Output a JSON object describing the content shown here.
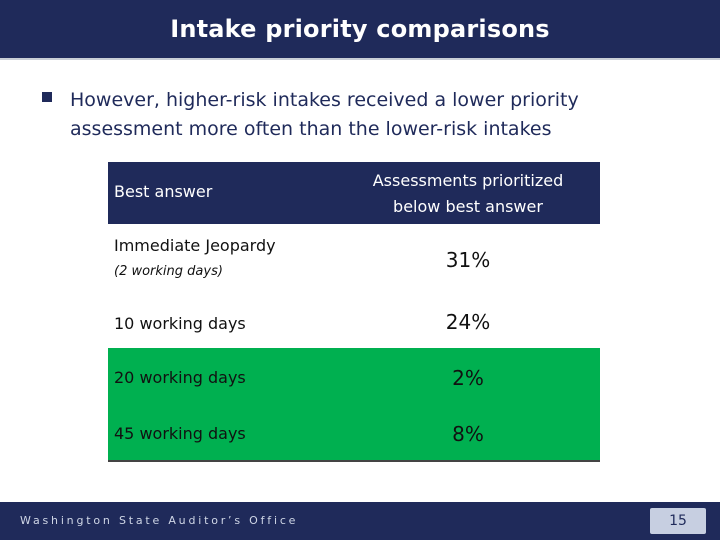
{
  "header": {
    "title": "Intake priority comparisons"
  },
  "bullet": {
    "text": "However, higher-risk intakes received a lower priority assessment more often than the lower-risk intakes"
  },
  "table": {
    "headers": {
      "best_answer": "Best answer",
      "assessments_prioritized": "Assessments prioritized\nbelow best answer"
    },
    "rows": [
      {
        "category": "Immediate Jeopardy",
        "subtext": "(2 working days)",
        "pct": "31%",
        "highlight": false
      },
      {
        "category": "10 working days",
        "subtext": "",
        "pct": "24%",
        "highlight": false
      },
      {
        "category": "20 working days",
        "subtext": "",
        "pct": "2%",
        "highlight": true
      },
      {
        "category": "45 working days",
        "subtext": "",
        "pct": "8%",
        "highlight": true
      }
    ]
  },
  "footer": {
    "office": "Washington State Auditor’s Office",
    "page_number": "15"
  },
  "colors": {
    "navy": "#1f2a5a",
    "green": "#00b050"
  }
}
